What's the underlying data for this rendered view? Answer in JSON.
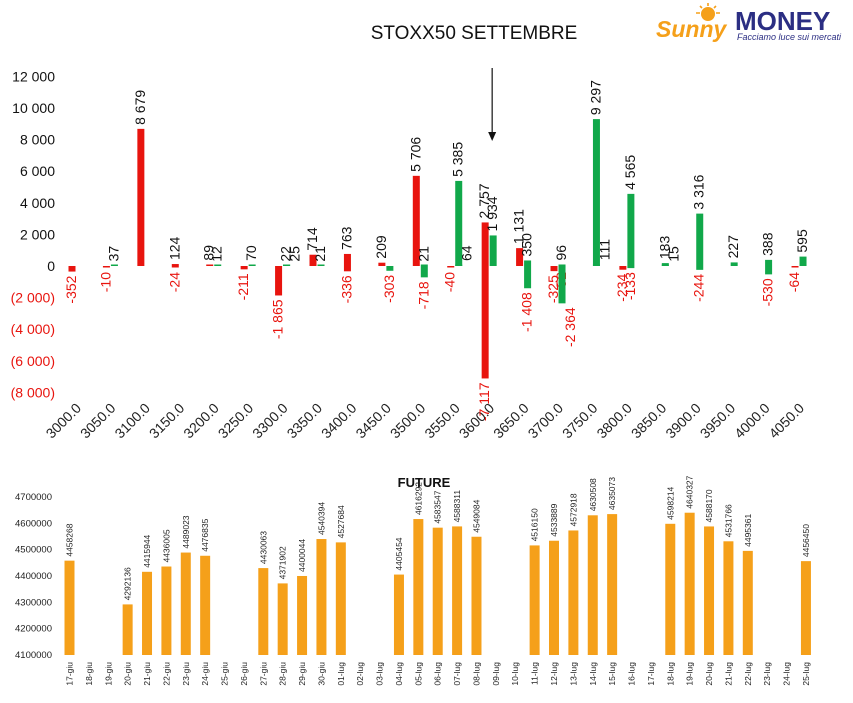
{
  "logo": {
    "script": "Sunny",
    "word": "MONEY",
    "tagline": "Facciamo luce sui mercati"
  },
  "colors": {
    "negative": "#e8140e",
    "positive": "#11a84a",
    "future_bar": "#f5a01a",
    "label_default": "#111111",
    "label_negative": "#e8140e"
  },
  "chart_data": [
    {
      "type": "bar",
      "title": "STOXX50 SETTEMBRE",
      "ylim": [
        -8000,
        12000
      ],
      "y_ticks": [
        12000,
        10000,
        8000,
        6000,
        4000,
        2000,
        0,
        -2000,
        -4000,
        -6000,
        -8000
      ],
      "y_tick_labels": [
        "12 000",
        "10 000",
        "8 000",
        "6 000",
        "4 000",
        "2 000",
        "0",
        "(2 000)",
        "(4 000)",
        "(6 000)",
        "(8 000)"
      ],
      "x_tick_labels": [
        "3000.0",
        "3050.0",
        "3100.0",
        "3150.0",
        "3200.0",
        "3250.0",
        "3300.0",
        "3350.0",
        "3400.0",
        "3450.0",
        "3500.0",
        "3550.0",
        "3600.0",
        "3650.0",
        "3700.0",
        "3750.0",
        "3800.0",
        "3850.0",
        "3900.0",
        "3950.0",
        "4000.0",
        "4050.0"
      ],
      "annotation": "arrow pointing down at strike 3600.0",
      "series": [
        {
          "color": "red",
          "points": [
            {
              "strike": 3000,
              "value": -352,
              "label": "-352"
            },
            {
              "strike": 3050,
              "value": -10,
              "label": "-10"
            },
            {
              "strike": 3100,
              "value": 8679,
              "label": "8 679"
            },
            {
              "strike": 3150,
              "value": -24,
              "label": "-24"
            },
            {
              "strike": 3150,
              "value": 124,
              "label": "124"
            },
            {
              "strike": 3200,
              "value": 89,
              "label": "89"
            },
            {
              "strike": 3250,
              "value": -211,
              "label": "-211"
            },
            {
              "strike": 3300,
              "value": -1865,
              "label": "-1 865"
            },
            {
              "strike": 3350,
              "value": 714,
              "label": "714"
            },
            {
              "strike": 3400,
              "value": 763,
              "label": "763"
            },
            {
              "strike": 3400,
              "value": -336,
              "label": "-336"
            },
            {
              "strike": 3450,
              "value": 209,
              "label": "209"
            },
            {
              "strike": 3500,
              "value": 5706,
              "label": "5 706"
            },
            {
              "strike": 3550,
              "value": -40,
              "label": "-40"
            },
            {
              "strike": 3600,
              "value": 2757,
              "label": "2 757"
            },
            {
              "strike": 3600,
              "value": -7117,
              "label": "-7 117"
            },
            {
              "strike": 3650,
              "value": 1131,
              "label": "1 131"
            },
            {
              "strike": 3700,
              "value": -325,
              "label": "-325"
            },
            {
              "strike": 3800,
              "value": -234,
              "label": "-234"
            },
            {
              "strike": 4050,
              "value": -64,
              "label": "-64"
            }
          ]
        },
        {
          "color": "green",
          "points": [
            {
              "strike": 3050,
              "value": 37,
              "label": "37"
            },
            {
              "strike": 3200,
              "value": 12,
              "label": "12"
            },
            {
              "strike": 3250,
              "value": 70,
              "label": "70"
            },
            {
              "strike": 3300,
              "value": 22,
              "label": "22"
            },
            {
              "strike": 3300,
              "value": 25,
              "label": "25"
            },
            {
              "strike": 3350,
              "value": 21,
              "label": "21"
            },
            {
              "strike": 3450,
              "value": -303,
              "label": "-303"
            },
            {
              "strike": 3500,
              "value": 21,
              "label": "21"
            },
            {
              "strike": 3500,
              "value": -718,
              "label": "-718"
            },
            {
              "strike": 3550,
              "value": 5385,
              "label": "5 385"
            },
            {
              "strike": 3550,
              "value": 64,
              "label": "64"
            },
            {
              "strike": 3600,
              "value": 1934,
              "label": "1 934"
            },
            {
              "strike": 3650,
              "value": 350,
              "label": "350"
            },
            {
              "strike": 3650,
              "value": -1408,
              "label": "-1 408"
            },
            {
              "strike": 3700,
              "value": -52,
              "label": "-52"
            },
            {
              "strike": 3700,
              "value": 96,
              "label": "96"
            },
            {
              "strike": 3700,
              "value": -2364,
              "label": "-2 364"
            },
            {
              "strike": 3750,
              "value": 9297,
              "label": "9 297"
            },
            {
              "strike": 3750,
              "value": 111,
              "label": "111"
            },
            {
              "strike": 3800,
              "value": 4565,
              "label": "4 565"
            },
            {
              "strike": 3800,
              "value": -133,
              "label": "-133"
            },
            {
              "strike": 3850,
              "value": 183,
              "label": "183"
            },
            {
              "strike": 3850,
              "value": 15,
              "label": "15"
            },
            {
              "strike": 3900,
              "value": 3316,
              "label": "3 316"
            },
            {
              "strike": 3900,
              "value": -244,
              "label": "-244"
            },
            {
              "strike": 3950,
              "value": 227,
              "label": "227"
            },
            {
              "strike": 4000,
              "value": 388,
              "label": "388"
            },
            {
              "strike": 4000,
              "value": -530,
              "label": "-530"
            },
            {
              "strike": 4050,
              "value": 595,
              "label": "595"
            }
          ]
        }
      ]
    },
    {
      "type": "bar",
      "title": "FUTURE",
      "ylim": [
        4100000,
        4700000
      ],
      "y_ticks": [
        4700000,
        4600000,
        4500000,
        4400000,
        4300000,
        4200000,
        4100000
      ],
      "y_tick_labels": [
        "4700000",
        "4600000",
        "4500000",
        "4400000",
        "4300000",
        "4200000",
        "4100000"
      ],
      "categories": [
        "17-giu",
        "18-giu",
        "19-giu",
        "20-giu",
        "21-giu",
        "22-giu",
        "23-giu",
        "24-giu",
        "25-giu",
        "26-giu",
        "27-giu",
        "28-giu",
        "29-giu",
        "30-giu",
        "01-lug",
        "02-lug",
        "03-lug",
        "04-lug",
        "05-lug",
        "06-lug",
        "07-lug",
        "08-lug",
        "09-lug",
        "10-lug",
        "11-lug",
        "12-lug",
        "13-lug",
        "14-lug",
        "15-lug",
        "16-lug",
        "17-lug",
        "18-lug",
        "19-lug",
        "20-lug",
        "21-lug",
        "22-lug",
        "23-lug",
        "24-lug",
        "25-lug"
      ],
      "values": [
        4458268,
        null,
        null,
        4292136,
        4415944,
        4436005,
        4489023,
        4476835,
        null,
        null,
        4430063,
        4371902,
        4400044,
        4540394,
        4527684,
        null,
        null,
        4405454,
        4616292,
        4583547,
        4588311,
        4549084,
        null,
        null,
        4516150,
        4533889,
        4572918,
        4630508,
        4635073,
        null,
        null,
        4598214,
        4640327,
        4588170,
        4531766,
        4495361,
        null,
        null,
        4456450
      ],
      "labels": [
        "4458268",
        "",
        "",
        "4292136",
        "4415944",
        "4436005",
        "4489023",
        "4476835",
        "",
        "",
        "4430063",
        "4371902",
        "4400044",
        "4540394",
        "4527684",
        "",
        "",
        "4405454",
        "4616292",
        "4583547",
        "4588311",
        "4549084",
        "",
        "",
        "4516150",
        "4533889",
        "4572918",
        "4630508",
        "4635073",
        "",
        "",
        "4598214",
        "4640327",
        "4588170",
        "4531766",
        "4495361",
        "",
        "",
        "4456450"
      ]
    }
  ]
}
